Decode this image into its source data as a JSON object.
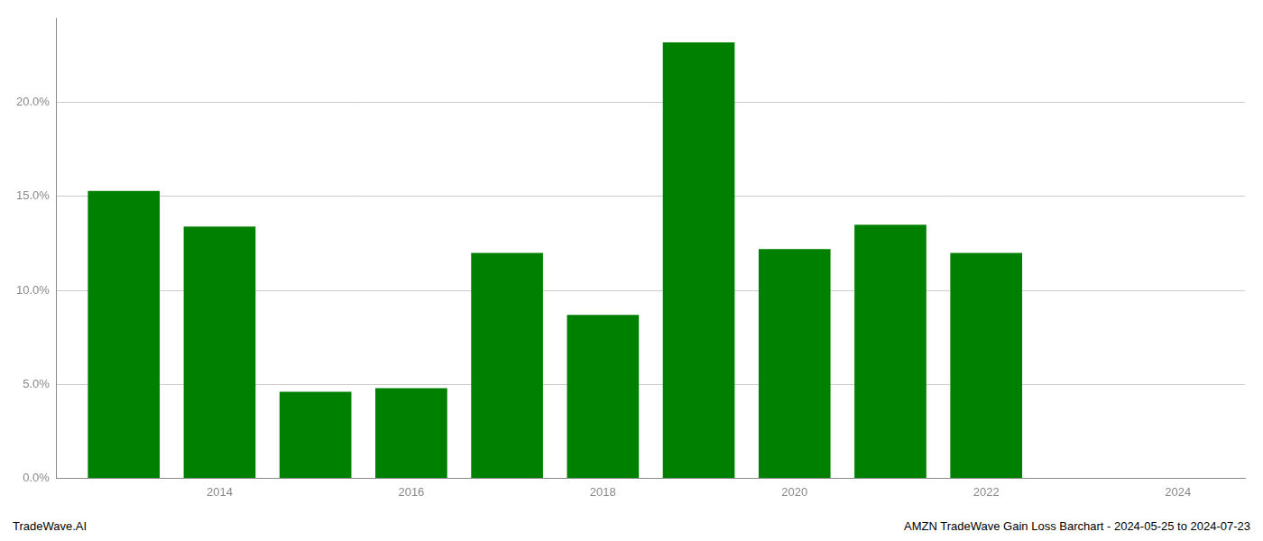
{
  "chart_data": {
    "type": "bar",
    "x": [
      2013,
      2014,
      2015,
      2016,
      2017,
      2018,
      2019,
      2020,
      2021,
      2022
    ],
    "values": [
      0.153,
      0.134,
      0.046,
      0.048,
      0.12,
      0.087,
      0.232,
      0.122,
      0.135,
      0.12
    ],
    "color": "#008000",
    "xlim": [
      2012.3,
      2024.7
    ],
    "xticks": [
      2014,
      2016,
      2018,
      2020,
      2022,
      2024
    ],
    "ylim": [
      0,
      0.245
    ],
    "yticks": [
      {
        "value": 0.0,
        "label": "0.0%"
      },
      {
        "value": 0.05,
        "label": "5.0%"
      },
      {
        "value": 0.1,
        "label": "10.0%"
      },
      {
        "value": 0.15,
        "label": "15.0%"
      },
      {
        "value": 0.2,
        "label": "20.0%"
      }
    ],
    "grid": "y",
    "annotations": [
      "TradeWave.AI",
      "AMZN TradeWave Gain Loss Barchart - 2024-05-25 to 2024-07-23"
    ]
  }
}
